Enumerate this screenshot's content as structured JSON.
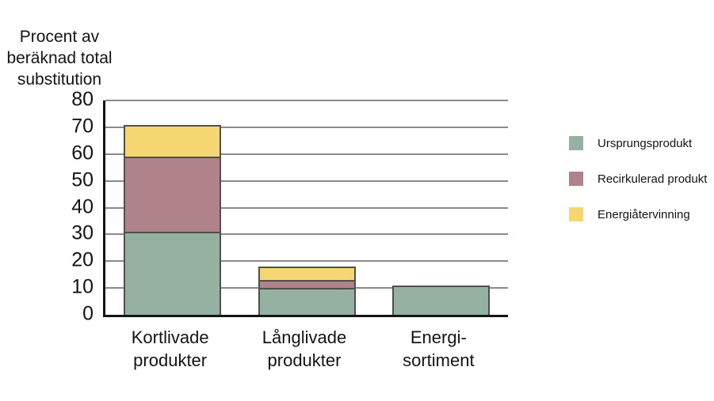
{
  "title": {
    "lines": [
      "Procent av",
      "beräknad total",
      "substitution"
    ]
  },
  "chart_data": {
    "type": "bar",
    "stacked": true,
    "title": "Procent av beräknad total substitution",
    "categories": [
      "Kortlivade\nprodukter",
      "Långlivade\nprodukter",
      "Energi-\nsortiment"
    ],
    "series": [
      {
        "name": "Ursprungsprodukt",
        "color": "#94B1A2",
        "values": [
          31,
          10,
          11
        ]
      },
      {
        "name": "Recirkulerad produkt",
        "color": "#B0828A",
        "values": [
          28,
          3,
          0
        ]
      },
      {
        "name": "Energiåtervinning",
        "color": "#F5D671",
        "values": [
          12,
          5,
          0
        ]
      }
    ],
    "stack_totals": [
      71,
      18,
      11
    ],
    "xlabel": "",
    "ylabel": "Procent av beräknad total substitution",
    "ylim": [
      0,
      80
    ],
    "ytick_labels": [
      "0",
      "10",
      "20",
      "30",
      "40",
      "50",
      "60",
      "70",
      "80"
    ],
    "grid": true,
    "legend_position": "right"
  },
  "legend": {
    "items": [
      "Ursprungsprodukt",
      "Recirkulerad produkt",
      "Energiåtervinning"
    ]
  },
  "colors": {
    "grid": "#8a8a8a",
    "axis": "#141414",
    "segment_border": "#50504a",
    "background": "#ffffff",
    "green": "#94B1A2",
    "mauve": "#B0828A",
    "yellow": "#F5D671"
  }
}
